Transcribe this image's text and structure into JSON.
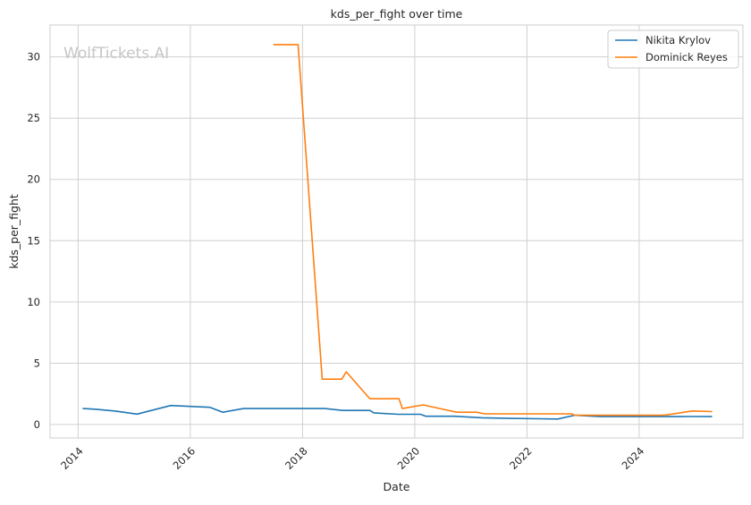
{
  "chart_data": {
    "type": "line",
    "title": "kds_per_fight over time",
    "xlabel": "Date",
    "ylabel": "kds_per_fight",
    "watermark": "WolfTickets.AI",
    "xlim": [
      2013.5,
      2025.85
    ],
    "ylim": [
      -1.1,
      32.6
    ],
    "x_ticks": [
      2014,
      2016,
      2018,
      2020,
      2022,
      2024
    ],
    "x_tick_labels": [
      "2014",
      "2016",
      "2018",
      "2020",
      "2022",
      "2024"
    ],
    "y_ticks": [
      0,
      5,
      10,
      15,
      20,
      25,
      30
    ],
    "y_tick_labels": [
      "0",
      "5",
      "10",
      "15",
      "20",
      "25",
      "30"
    ],
    "grid": true,
    "legend_position": "top-right",
    "series": [
      {
        "name": "Nikita Krylov",
        "color": "#1f77b4",
        "x": [
          2014.08,
          2014.3,
          2014.65,
          2015.05,
          2015.65,
          2016.35,
          2016.58,
          2016.95,
          2017.5,
          2018.0,
          2018.4,
          2018.72,
          2019.2,
          2019.27,
          2019.7,
          2020.1,
          2020.2,
          2020.7,
          2021.2,
          2021.7,
          2022.2,
          2022.55,
          2022.85,
          2023.3,
          2023.9,
          2024.5,
          2024.9,
          2025.3
        ],
        "y": [
          1.3,
          1.25,
          1.1,
          0.85,
          1.55,
          1.4,
          1.0,
          1.3,
          1.3,
          1.3,
          1.3,
          1.15,
          1.15,
          0.95,
          0.83,
          0.83,
          0.67,
          0.67,
          0.55,
          0.5,
          0.47,
          0.45,
          0.75,
          0.64,
          0.64,
          0.64,
          0.65,
          0.64
        ]
      },
      {
        "name": "Dominick Reyes",
        "color": "#ff7f0e",
        "x": [
          2017.48,
          2017.92,
          2018.35,
          2018.7,
          2018.78,
          2019.2,
          2019.72,
          2019.78,
          2020.15,
          2020.75,
          2021.1,
          2021.25,
          2021.8,
          2022.8,
          2022.85,
          2023.4,
          2024.45,
          2024.95,
          2025.3
        ],
        "y": [
          31.0,
          31.0,
          3.7,
          3.7,
          4.3,
          2.1,
          2.1,
          1.3,
          1.6,
          1.0,
          1.0,
          0.87,
          0.87,
          0.87,
          0.75,
          0.75,
          0.75,
          1.1,
          1.05
        ]
      }
    ]
  }
}
